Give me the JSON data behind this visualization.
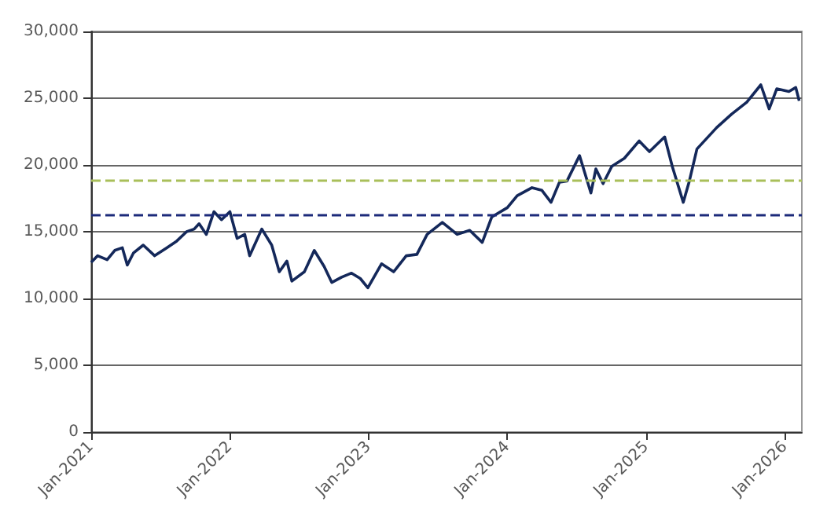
{
  "chart_data": {
    "type": "line",
    "x": [
      "2021-01-01",
      "2021-01-18",
      "2021-02-12",
      "2021-03-04",
      "2021-03-24",
      "2021-04-06",
      "2021-04-22",
      "2021-05-18",
      "2021-06-17",
      "2021-07-19",
      "2021-08-14",
      "2021-09-09",
      "2021-09-29",
      "2021-10-12",
      "2021-10-31",
      "2021-11-20",
      "2021-12-10",
      "2022-01-01",
      "2022-01-20",
      "2022-02-09",
      "2022-02-22",
      "2022-03-26",
      "2022-04-21",
      "2022-05-11",
      "2022-05-31",
      "2022-06-13",
      "2022-07-16",
      "2022-08-11",
      "2022-09-06",
      "2022-09-26",
      "2022-10-22",
      "2022-11-17",
      "2022-12-10",
      "2022-12-30",
      "2023-02-04",
      "2023-03-08",
      "2023-04-10",
      "2023-05-08",
      "2023-06-04",
      "2023-07-14",
      "2023-08-22",
      "2023-09-24",
      "2023-10-27",
      "2023-11-21",
      "2024-01-01",
      "2024-01-27",
      "2024-03-06",
      "2024-04-01",
      "2024-04-25",
      "2024-05-17",
      "2024-06-06",
      "2024-07-09",
      "2024-08-08",
      "2024-08-21",
      "2024-09-09",
      "2024-10-02",
      "2024-11-04",
      "2024-12-13",
      "2025-01-09",
      "2025-02-18",
      "2025-03-10",
      "2025-04-08",
      "2025-04-24",
      "2025-05-14",
      "2025-07-05",
      "2025-08-13",
      "2025-09-22",
      "2025-10-29",
      "2025-11-20",
      "2025-12-10",
      "2026-01-11",
      "2026-01-29",
      "2026-02-07"
    ],
    "series": [
      {
        "color": "#14285a",
        "values": [
          12700,
          13200,
          12900,
          13600,
          13800,
          12500,
          13400,
          14000,
          13200,
          13800,
          14300,
          15000,
          15200,
          15600,
          14800,
          16500,
          15900,
          16500,
          14500,
          14800,
          13200,
          15200,
          14000,
          12000,
          12800,
          11300,
          12000,
          13600,
          12400,
          11200,
          11600,
          11900,
          11500,
          10800,
          12600,
          12000,
          13200,
          13300,
          14800,
          15700,
          14800,
          15100,
          14200,
          16100,
          16800,
          17700,
          18300,
          18100,
          17200,
          18700,
          18800,
          20700,
          17900,
          19700,
          18600,
          19900,
          20500,
          21800,
          21000,
          22100,
          19900,
          17200,
          18800,
          21200,
          22800,
          23800,
          24700,
          26000,
          24200,
          25700,
          25500,
          25800,
          24800
        ]
      }
    ],
    "xlim": [
      "2021-01-01",
      "2026-02-14"
    ],
    "xticks": [
      {
        "value": "2021-01-01",
        "label": "Jan-2021"
      },
      {
        "value": "2022-01-01",
        "label": "Jan-2022"
      },
      {
        "value": "2023-01-01",
        "label": "Jan-2023"
      },
      {
        "value": "2024-01-01",
        "label": "Jan-2024"
      },
      {
        "value": "2025-01-01",
        "label": "Jan-2025"
      },
      {
        "value": "2026-01-01",
        "label": "Jan-2026"
      }
    ],
    "ylim": [
      0,
      30000
    ],
    "yticks": [
      0,
      {
        "value": 5000,
        "label": "5,000"
      },
      {
        "value": 10000,
        "label": "10,000"
      },
      {
        "value": 15000,
        "label": "15,000"
      },
      {
        "value": 20000,
        "label": "20,000"
      },
      {
        "value": 25000,
        "label": "25,000"
      },
      {
        "value": 30000,
        "label": "30,000"
      }
    ],
    "grid": "y",
    "marker": "none",
    "line_style": "solid",
    "ref_lines": [
      {
        "axis": "y",
        "value": 18800,
        "color": "#a9bf5a",
        "line_style": "dashed"
      },
      {
        "axis": "y",
        "value": 16300,
        "color": "#1c2a7a",
        "line_style": "dashed"
      }
    ]
  }
}
